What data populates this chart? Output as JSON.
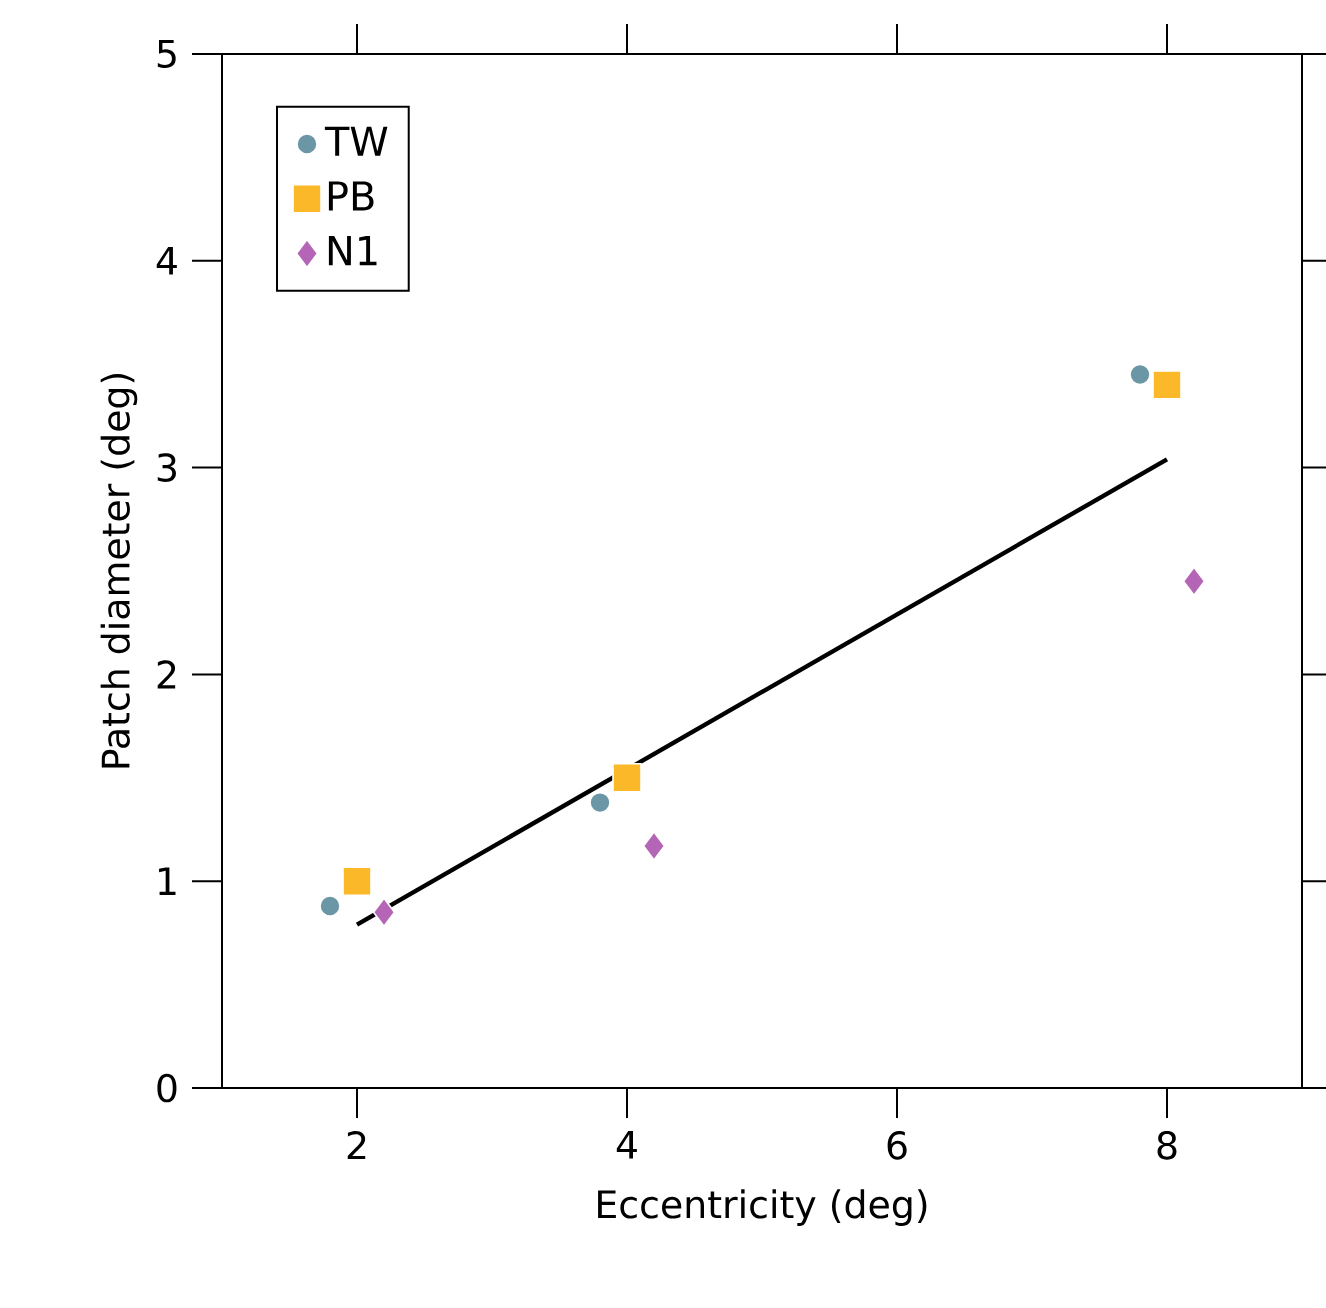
{
  "chart_data": {
    "type": "scatter",
    "xlabel": "Eccentricity (deg)",
    "ylabel": "Patch diameter (deg)",
    "xlim": [
      1,
      9
    ],
    "ylim": [
      0,
      5
    ],
    "xticks": [
      2,
      4,
      6,
      8
    ],
    "yticks": [
      0,
      1,
      2,
      3,
      4,
      5
    ],
    "grid": false,
    "legend": "top left",
    "series": [
      {
        "name": "TW",
        "color": "#6a96a6",
        "marker": "circle",
        "x": [
          1.8,
          3.8,
          7.8
        ],
        "values": [
          0.88,
          1.38,
          3.45
        ]
      },
      {
        "name": "PB",
        "color": "#fbb829",
        "marker": "square",
        "x": [
          2,
          4,
          8
        ],
        "values": [
          1.0,
          1.5,
          3.4
        ]
      },
      {
        "name": "N1",
        "color": "#b565b5",
        "marker": "diamond",
        "x": [
          2.2,
          4.2,
          8.2
        ],
        "values": [
          0.85,
          1.17,
          2.45
        ]
      },
      {
        "type": "line",
        "color": "#000000",
        "marker": "none",
        "x": [
          2,
          8
        ],
        "values": [
          0.79,
          3.04
        ]
      }
    ]
  }
}
